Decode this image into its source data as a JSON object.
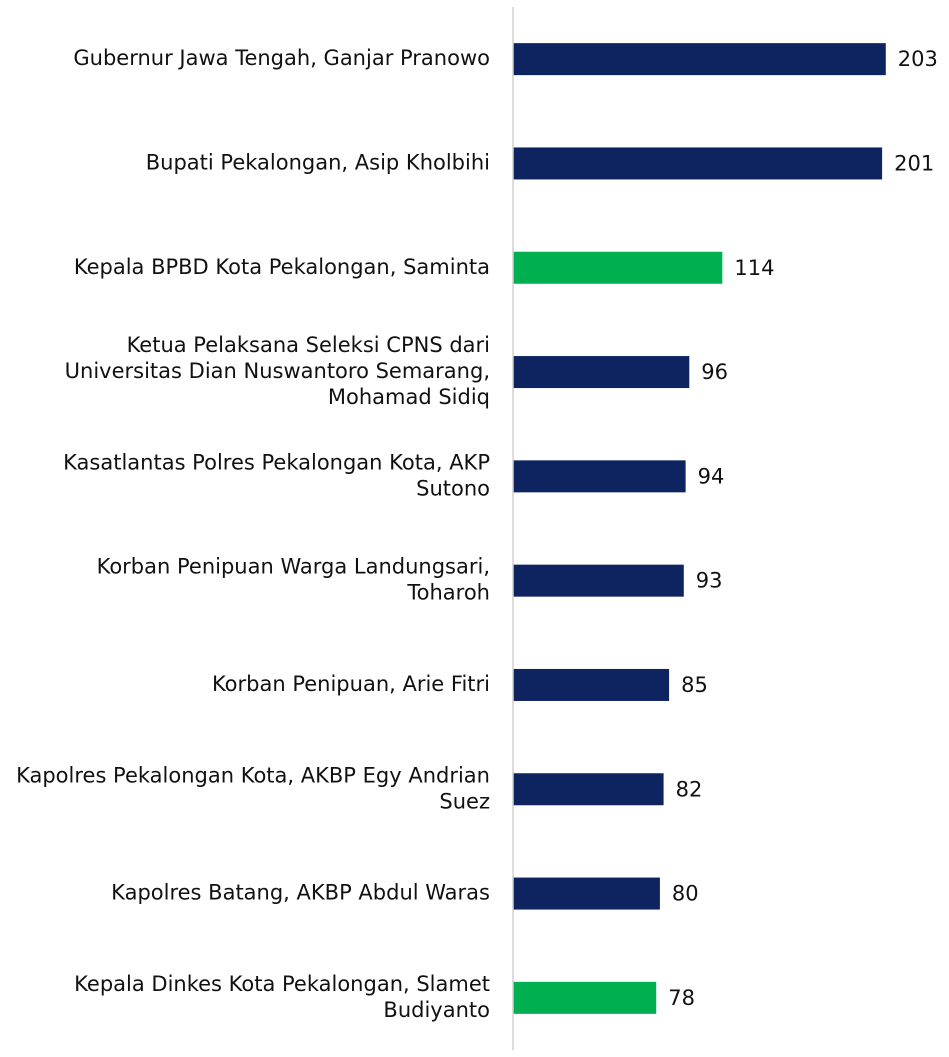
{
  "chart_data": {
    "type": "barh",
    "categories": [
      "Gubernur Jawa Tengah, Ganjar Pranowo",
      "Bupati Pekalongan, Asip Kholbihi",
      "Kepala BPBD Kota Pekalongan, Saminta",
      "Ketua Pelaksana Seleksi CPNS dari Universitas Dian Nuswantoro Semarang, Mohamad Sidiq",
      "Kasatlantas Polres Pekalongan Kota, AKP Sutono",
      "Korban Penipuan Warga Landungsari, Toharoh",
      "Korban Penipuan, Arie Fitri",
      "Kapolres Pekalongan Kota, AKBP Egy Andrian Suez",
      "Kapolres Batang, AKBP Abdul Waras",
      "Kepala Dinkes Kota Pekalongan, Slamet Budiyanto"
    ],
    "values": [
      203,
      201,
      114,
      96,
      94,
      93,
      85,
      82,
      80,
      78
    ],
    "colors": [
      "#0d2461",
      "#0d2461",
      "#00b050",
      "#0d2461",
      "#0d2461",
      "#0d2461",
      "#0d2461",
      "#0d2461",
      "#0d2461",
      "#00b050"
    ],
    "xlim": [
      0,
      220
    ]
  }
}
